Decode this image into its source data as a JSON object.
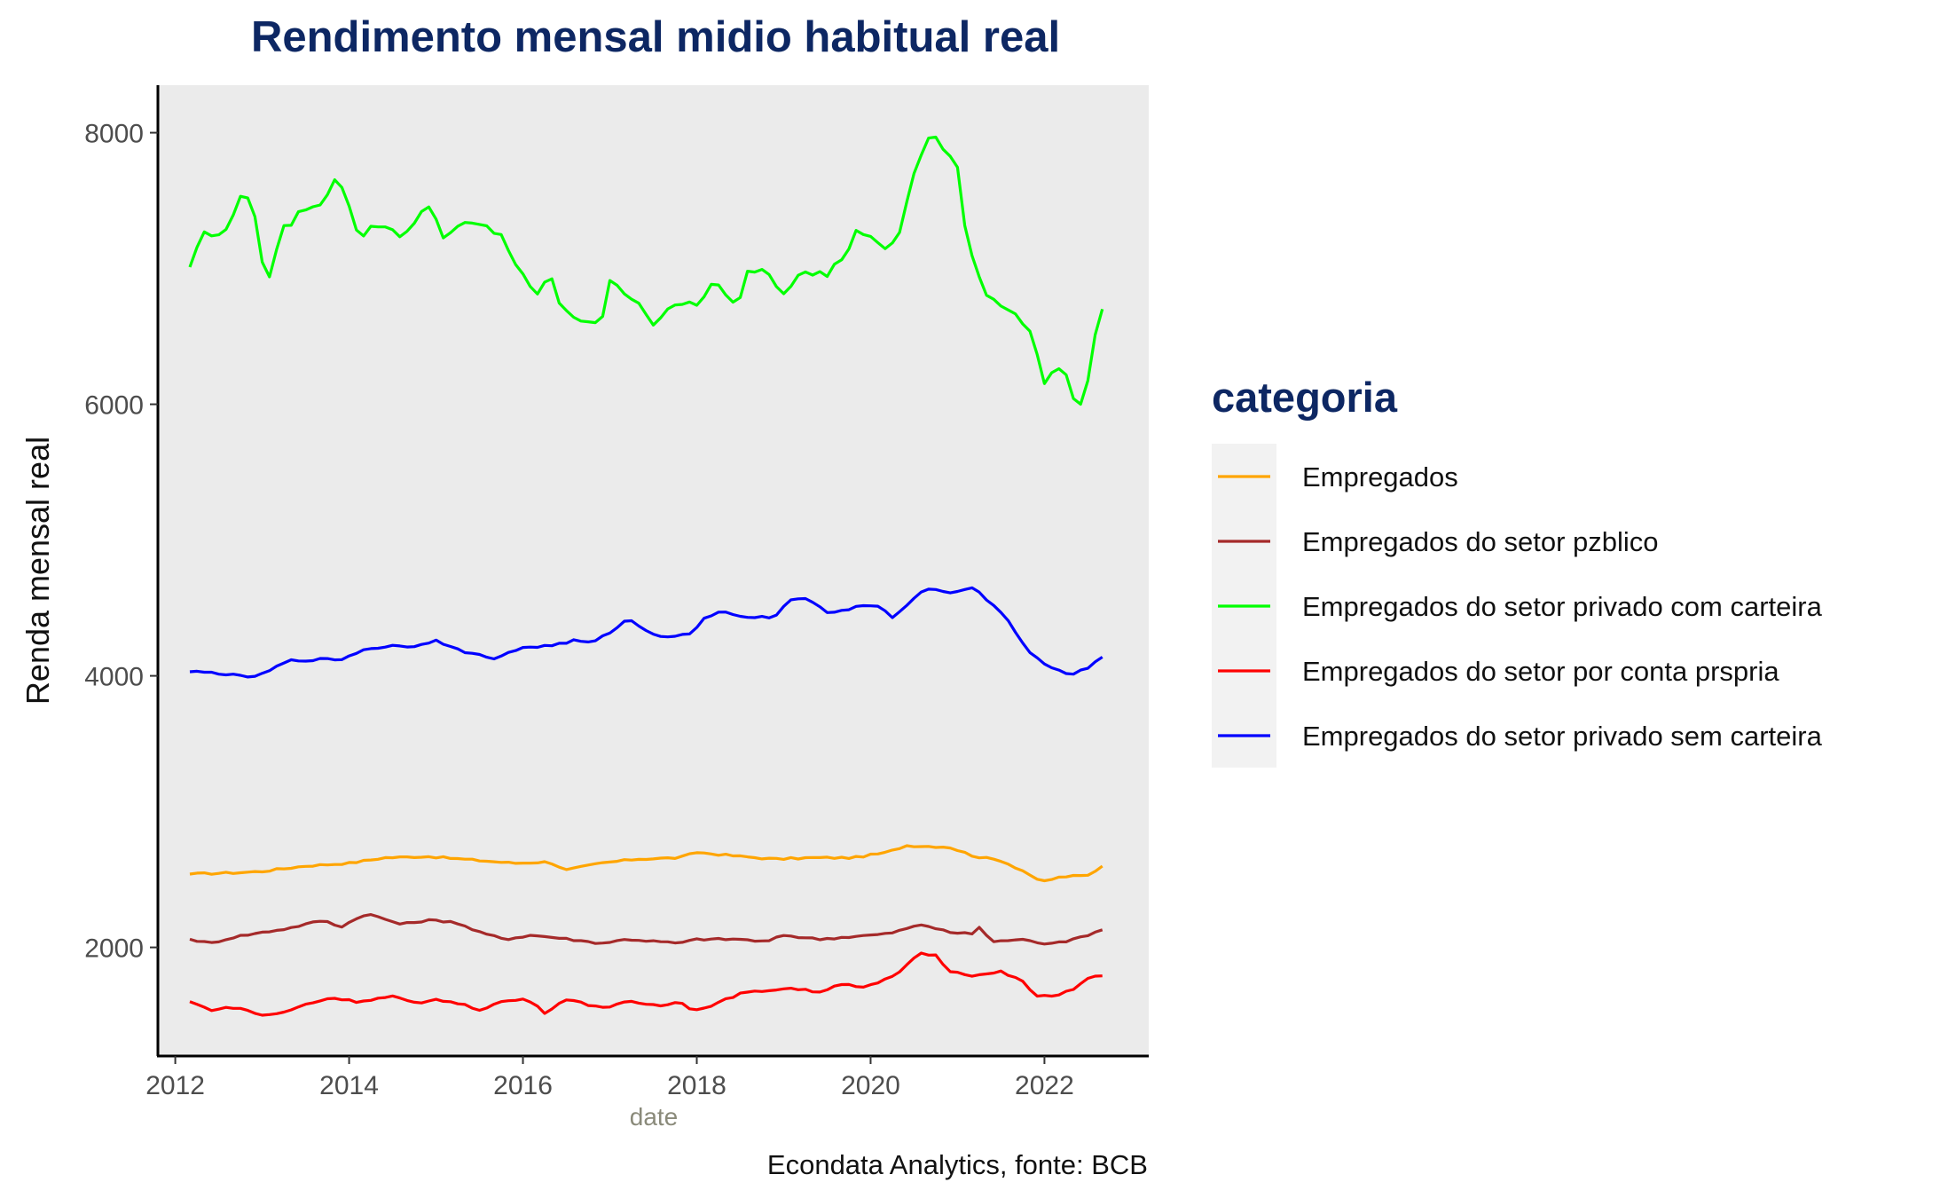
{
  "chart_data": {
    "type": "line",
    "title": "Rendimento mensal midio habitual real",
    "xlabel": "date",
    "ylabel": "Renda mensal real",
    "caption": "Econdata Analytics, fonte: BCB",
    "legend_title": "categoria",
    "legend_position": "right",
    "grid": false,
    "panel_background": "#ebebeb",
    "xlim": [
      2011.8,
      2023.2
    ],
    "ylim": [
      1200,
      8350
    ],
    "x_ticks": [
      2012,
      2014,
      2016,
      2018,
      2020,
      2022
    ],
    "x_tick_labels": [
      "2012",
      "2014",
      "2016",
      "2018",
      "2020",
      "2022"
    ],
    "y_ticks": [
      2000,
      4000,
      6000,
      8000
    ],
    "y_tick_labels": [
      "2000",
      "4000",
      "6000",
      "8000"
    ],
    "x_start": 2012.167,
    "x_step": 0.08333,
    "series": [
      {
        "name": "Empregados",
        "color": "#ffa500",
        "keypoints": [
          [
            2012.17,
            2540
          ],
          [
            2012.7,
            2550
          ],
          [
            2013.0,
            2560
          ],
          [
            2013.5,
            2600
          ],
          [
            2014.0,
            2620
          ],
          [
            2014.4,
            2660
          ],
          [
            2014.9,
            2670
          ],
          [
            2015.3,
            2650
          ],
          [
            2015.9,
            2620
          ],
          [
            2016.3,
            2630
          ],
          [
            2016.5,
            2570
          ],
          [
            2016.9,
            2620
          ],
          [
            2017.3,
            2650
          ],
          [
            2017.8,
            2660
          ],
          [
            2018.0,
            2700
          ],
          [
            2018.5,
            2670
          ],
          [
            2018.9,
            2650
          ],
          [
            2019.3,
            2660
          ],
          [
            2019.8,
            2660
          ],
          [
            2020.2,
            2700
          ],
          [
            2020.4,
            2750
          ],
          [
            2020.9,
            2740
          ],
          [
            2021.2,
            2670
          ],
          [
            2021.5,
            2640
          ],
          [
            2021.8,
            2550
          ],
          [
            2021.95,
            2480
          ],
          [
            2022.2,
            2520
          ],
          [
            2022.5,
            2530
          ],
          [
            2022.67,
            2600
          ]
        ]
      },
      {
        "name": "Empregados do setor pzblico",
        "color": "#a52a2a",
        "keypoints": [
          [
            2012.17,
            2060
          ],
          [
            2012.4,
            2030
          ],
          [
            2012.7,
            2080
          ],
          [
            2013.0,
            2110
          ],
          [
            2013.3,
            2140
          ],
          [
            2013.7,
            2200
          ],
          [
            2013.9,
            2150
          ],
          [
            2014.2,
            2250
          ],
          [
            2014.6,
            2170
          ],
          [
            2014.9,
            2200
          ],
          [
            2015.2,
            2190
          ],
          [
            2015.5,
            2110
          ],
          [
            2015.8,
            2060
          ],
          [
            2016.1,
            2090
          ],
          [
            2016.4,
            2070
          ],
          [
            2016.9,
            2030
          ],
          [
            2017.2,
            2060
          ],
          [
            2017.8,
            2030
          ],
          [
            2018.0,
            2060
          ],
          [
            2018.5,
            2060
          ],
          [
            2018.8,
            2040
          ],
          [
            2019.0,
            2090
          ],
          [
            2019.4,
            2060
          ],
          [
            2019.8,
            2080
          ],
          [
            2020.2,
            2100
          ],
          [
            2020.6,
            2170
          ],
          [
            2020.9,
            2110
          ],
          [
            2021.2,
            2100
          ],
          [
            2021.25,
            2150
          ],
          [
            2021.4,
            2040
          ],
          [
            2021.7,
            2060
          ],
          [
            2022.0,
            2030
          ],
          [
            2022.3,
            2050
          ],
          [
            2022.67,
            2130
          ]
        ]
      },
      {
        "name": "Empregados do setor privado com carteira",
        "color": "#00ff00",
        "keypoints": [
          [
            2012.17,
            7010
          ],
          [
            2012.3,
            7260
          ],
          [
            2012.55,
            7230
          ],
          [
            2012.75,
            7550
          ],
          [
            2012.9,
            7450
          ],
          [
            2013.05,
            6880
          ],
          [
            2013.25,
            7290
          ],
          [
            2013.5,
            7450
          ],
          [
            2013.7,
            7450
          ],
          [
            2013.8,
            7680
          ],
          [
            2013.95,
            7600
          ],
          [
            2014.1,
            7230
          ],
          [
            2014.35,
            7330
          ],
          [
            2014.6,
            7250
          ],
          [
            2014.8,
            7350
          ],
          [
            2014.9,
            7490
          ],
          [
            2015.1,
            7230
          ],
          [
            2015.3,
            7320
          ],
          [
            2015.5,
            7320
          ],
          [
            2015.75,
            7250
          ],
          [
            2015.95,
            6990
          ],
          [
            2016.15,
            6780
          ],
          [
            2016.3,
            6980
          ],
          [
            2016.45,
            6680
          ],
          [
            2016.7,
            6620
          ],
          [
            2016.9,
            6610
          ],
          [
            2017.0,
            6890
          ],
          [
            2017.3,
            6780
          ],
          [
            2017.5,
            6600
          ],
          [
            2017.8,
            6740
          ],
          [
            2018.05,
            6750
          ],
          [
            2018.2,
            6900
          ],
          [
            2018.45,
            6710
          ],
          [
            2018.6,
            7000
          ],
          [
            2018.8,
            6990
          ],
          [
            2019.0,
            6820
          ],
          [
            2019.2,
            7000
          ],
          [
            2019.5,
            6950
          ],
          [
            2019.7,
            7100
          ],
          [
            2019.85,
            7280
          ],
          [
            2020.0,
            7250
          ],
          [
            2020.2,
            7100
          ],
          [
            2020.35,
            7300
          ],
          [
            2020.5,
            7700
          ],
          [
            2020.7,
            8030
          ],
          [
            2020.8,
            7900
          ],
          [
            2021.0,
            7750
          ],
          [
            2021.1,
            7200
          ],
          [
            2021.3,
            6850
          ],
          [
            2021.45,
            6750
          ],
          [
            2021.6,
            6700
          ],
          [
            2021.85,
            6550
          ],
          [
            2022.0,
            6150
          ],
          [
            2022.2,
            6300
          ],
          [
            2022.3,
            6100
          ],
          [
            2022.45,
            5960
          ],
          [
            2022.55,
            6400
          ],
          [
            2022.67,
            6710
          ]
        ]
      },
      {
        "name": "Empregados do setor por conta prspria",
        "color": "#ff0000",
        "keypoints": [
          [
            2012.17,
            1600
          ],
          [
            2012.4,
            1540
          ],
          [
            2012.7,
            1560
          ],
          [
            2013.0,
            1500
          ],
          [
            2013.25,
            1520
          ],
          [
            2013.5,
            1580
          ],
          [
            2013.8,
            1630
          ],
          [
            2014.1,
            1600
          ],
          [
            2014.5,
            1640
          ],
          [
            2014.8,
            1580
          ],
          [
            2015.0,
            1620
          ],
          [
            2015.3,
            1580
          ],
          [
            2015.5,
            1540
          ],
          [
            2015.75,
            1600
          ],
          [
            2016.05,
            1620
          ],
          [
            2016.25,
            1520
          ],
          [
            2016.5,
            1620
          ],
          [
            2016.8,
            1570
          ],
          [
            2017.0,
            1560
          ],
          [
            2017.2,
            1600
          ],
          [
            2017.6,
            1570
          ],
          [
            2017.8,
            1610
          ],
          [
            2017.95,
            1530
          ],
          [
            2018.2,
            1580
          ],
          [
            2018.5,
            1660
          ],
          [
            2018.9,
            1690
          ],
          [
            2019.1,
            1700
          ],
          [
            2019.4,
            1670
          ],
          [
            2019.7,
            1740
          ],
          [
            2019.9,
            1700
          ],
          [
            2020.1,
            1740
          ],
          [
            2020.35,
            1820
          ],
          [
            2020.55,
            1960
          ],
          [
            2020.75,
            1940
          ],
          [
            2020.9,
            1830
          ],
          [
            2021.2,
            1790
          ],
          [
            2021.5,
            1820
          ],
          [
            2021.75,
            1750
          ],
          [
            2021.9,
            1640
          ],
          [
            2022.1,
            1640
          ],
          [
            2022.35,
            1700
          ],
          [
            2022.55,
            1790
          ],
          [
            2022.67,
            1790
          ]
        ]
      },
      {
        "name": "Empregados do setor privado sem carteira",
        "color": "#0000ff",
        "keypoints": [
          [
            2012.17,
            4030
          ],
          [
            2012.5,
            4020
          ],
          [
            2012.8,
            3990
          ],
          [
            2013.0,
            4010
          ],
          [
            2013.3,
            4110
          ],
          [
            2013.6,
            4120
          ],
          [
            2013.9,
            4120
          ],
          [
            2014.2,
            4200
          ],
          [
            2014.5,
            4220
          ],
          [
            2014.8,
            4220
          ],
          [
            2015.0,
            4270
          ],
          [
            2015.2,
            4200
          ],
          [
            2015.5,
            4150
          ],
          [
            2015.7,
            4130
          ],
          [
            2016.0,
            4210
          ],
          [
            2016.3,
            4220
          ],
          [
            2016.6,
            4260
          ],
          [
            2016.8,
            4240
          ],
          [
            2017.0,
            4320
          ],
          [
            2017.2,
            4420
          ],
          [
            2017.4,
            4340
          ],
          [
            2017.6,
            4290
          ],
          [
            2017.9,
            4300
          ],
          [
            2018.1,
            4430
          ],
          [
            2018.3,
            4480
          ],
          [
            2018.6,
            4420
          ],
          [
            2018.9,
            4440
          ],
          [
            2019.1,
            4580
          ],
          [
            2019.3,
            4560
          ],
          [
            2019.5,
            4460
          ],
          [
            2019.7,
            4480
          ],
          [
            2019.9,
            4520
          ],
          [
            2020.1,
            4510
          ],
          [
            2020.25,
            4420
          ],
          [
            2020.5,
            4580
          ],
          [
            2020.7,
            4660
          ],
          [
            2020.85,
            4610
          ],
          [
            2021.0,
            4620
          ],
          [
            2021.15,
            4660
          ],
          [
            2021.4,
            4530
          ],
          [
            2021.6,
            4400
          ],
          [
            2021.8,
            4180
          ],
          [
            2022.0,
            4090
          ],
          [
            2022.15,
            4040
          ],
          [
            2022.3,
            4010
          ],
          [
            2022.5,
            4060
          ],
          [
            2022.67,
            4140
          ]
        ]
      }
    ]
  }
}
